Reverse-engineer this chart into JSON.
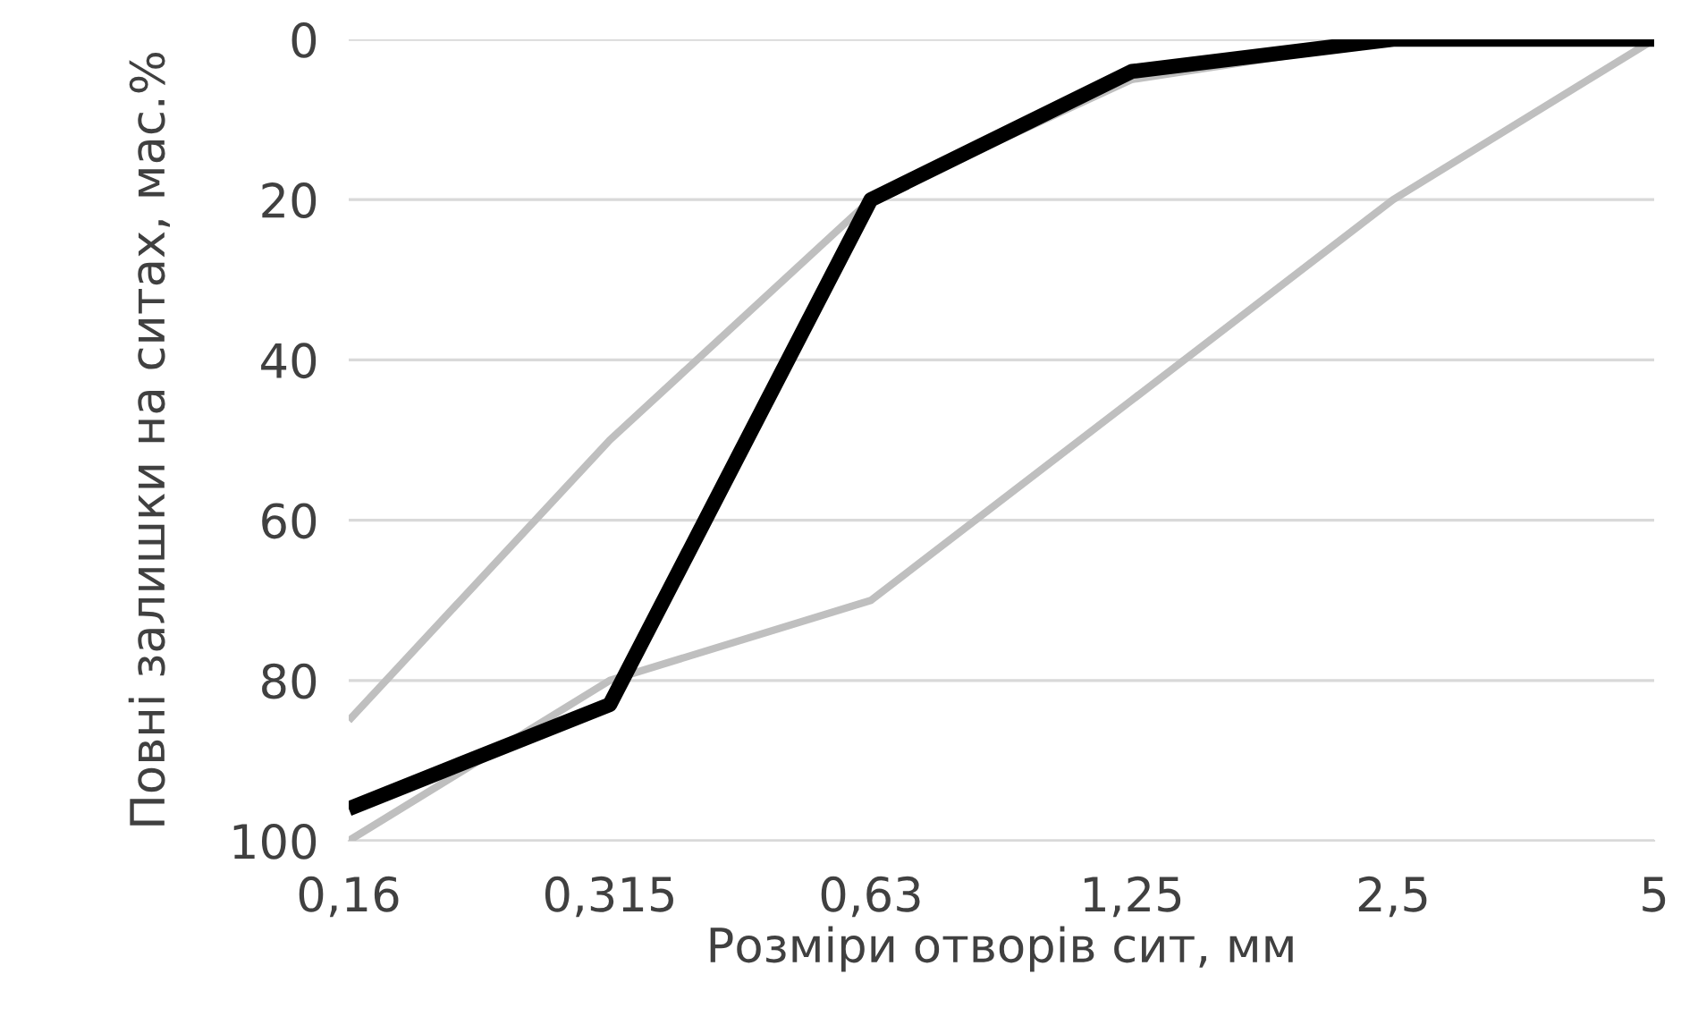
{
  "chart_data": {
    "type": "line",
    "xlabel": "Розміри отворів сит, мм",
    "ylabel": "Повні залишки на ситах, мас.%",
    "categories": [
      "0,16",
      "0,315",
      "0,63",
      "1,25",
      "2,5",
      "5"
    ],
    "series": [
      {
        "color": "#bfbfbf",
        "values": [
          85,
          50,
          20,
          5,
          0,
          0
        ]
      },
      {
        "color": "#bfbfbf",
        "values": [
          100,
          80,
          70,
          45,
          20,
          0
        ]
      },
      {
        "color": "#000000",
        "values": [
          96,
          83,
          20,
          4,
          0,
          0
        ]
      }
    ],
    "ylim": [
      100,
      0
    ],
    "yticks": [
      0,
      20,
      40,
      60,
      80,
      100
    ],
    "grid": "y",
    "marker": "none",
    "line_style": "solid"
  }
}
